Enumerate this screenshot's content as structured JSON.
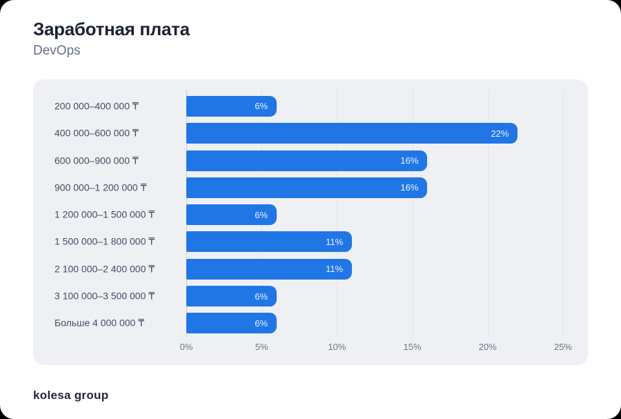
{
  "header": {
    "title": "Заработная плата",
    "subtitle": "DevOps"
  },
  "footer": {
    "logo": "kolesa group"
  },
  "chart_data": {
    "type": "bar",
    "orientation": "horizontal",
    "title": "Заработная плата",
    "subtitle": "DevOps",
    "categories": [
      "200 000–400 000 ₸",
      "400 000–600 000 ₸",
      "600 000–900 000 ₸",
      "900 000–1 200 000 ₸",
      "1 200 000–1 500 000 ₸",
      "1 500 000–1 800 000 ₸",
      "2 100 000–2 400 000 ₸",
      "3 100 000–3 500 000 ₸",
      "Больше 4 000 000 ₸"
    ],
    "values": [
      6,
      22,
      16,
      16,
      6,
      11,
      11,
      6,
      6
    ],
    "value_labels": [
      "6%",
      "22%",
      "16%",
      "16%",
      "6%",
      "11%",
      "11%",
      "6%",
      "6%"
    ],
    "xlim": [
      0,
      25
    ],
    "x_ticks": [
      "0%",
      "5%",
      "10%",
      "15%",
      "20%",
      "25%"
    ],
    "xlabel": "",
    "ylabel": "",
    "grid": "vertical-only",
    "legend": "none",
    "bar_color": "#2176E6"
  },
  "colors": {
    "accent_bar": "#2176E6",
    "card_background": "#EEF0F4",
    "page_background": "#FFFFFF",
    "outer_background": "#000000",
    "title": "#1C2331",
    "subtitle": "#66707F",
    "category_label": "#424D61",
    "tick_label": "#6E7684",
    "gridline": "#E0E3E8",
    "axis_line": "#C7CCD4",
    "bar_value_text": "#ECF3FD"
  }
}
